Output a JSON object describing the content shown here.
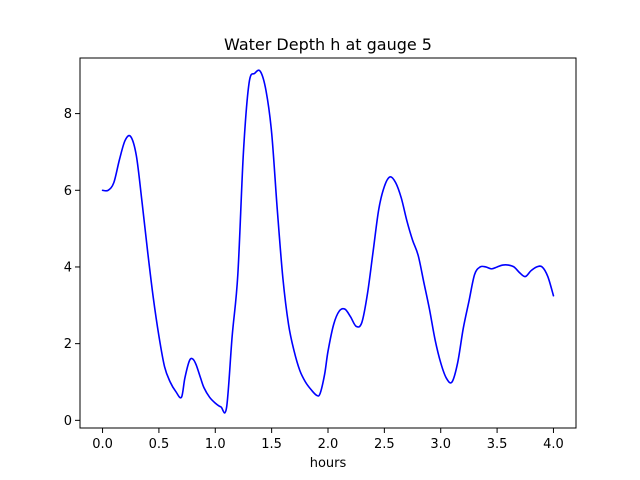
{
  "chart_data": {
    "type": "line",
    "title": "Water Depth h at gauge 5",
    "xlabel": "hours",
    "ylabel": "",
    "xlim": [
      -0.2,
      4.2
    ],
    "ylim": [
      -0.2,
      9.45
    ],
    "xticks": [
      "0.0",
      "0.5",
      "1.0",
      "1.5",
      "2.0",
      "2.5",
      "3.0",
      "3.5",
      "4.0"
    ],
    "yticks": [
      "0",
      "2",
      "4",
      "6",
      "8"
    ],
    "grid": false,
    "series": [
      {
        "color": "#0000ff",
        "x": [
          0.0,
          0.05,
          0.1,
          0.15,
          0.2,
          0.25,
          0.3,
          0.35,
          0.4,
          0.45,
          0.5,
          0.55,
          0.6,
          0.65,
          0.7,
          0.73,
          0.77,
          0.8,
          0.83,
          0.87,
          0.9,
          0.95,
          1.0,
          1.05,
          1.1,
          1.15,
          1.2,
          1.25,
          1.3,
          1.35,
          1.4,
          1.45,
          1.5,
          1.55,
          1.6,
          1.65,
          1.7,
          1.75,
          1.8,
          1.85,
          1.9,
          1.93,
          1.97,
          2.0,
          2.05,
          2.1,
          2.15,
          2.2,
          2.25,
          2.3,
          2.35,
          2.4,
          2.45,
          2.5,
          2.55,
          2.6,
          2.65,
          2.7,
          2.75,
          2.8,
          2.85,
          2.9,
          2.95,
          3.0,
          3.05,
          3.1,
          3.15,
          3.2,
          3.25,
          3.3,
          3.35,
          3.4,
          3.45,
          3.5,
          3.55,
          3.6,
          3.65,
          3.7,
          3.75,
          3.8,
          3.85,
          3.9,
          3.95,
          4.0
        ],
        "y": [
          6.0,
          6.0,
          6.2,
          6.8,
          7.3,
          7.4,
          6.9,
          5.7,
          4.4,
          3.2,
          2.2,
          1.4,
          1.0,
          0.75,
          0.6,
          1.1,
          1.55,
          1.6,
          1.45,
          1.1,
          0.85,
          0.6,
          0.45,
          0.35,
          0.33,
          2.2,
          3.8,
          7.0,
          8.8,
          9.05,
          9.1,
          8.6,
          7.5,
          5.5,
          3.7,
          2.5,
          1.8,
          1.3,
          1.0,
          0.8,
          0.65,
          0.7,
          1.2,
          1.8,
          2.5,
          2.85,
          2.9,
          2.7,
          2.45,
          2.55,
          3.3,
          4.4,
          5.5,
          6.1,
          6.35,
          6.2,
          5.8,
          5.2,
          4.7,
          4.3,
          3.6,
          2.9,
          2.1,
          1.5,
          1.1,
          1.0,
          1.5,
          2.4,
          3.1,
          3.8,
          4.0,
          4.0,
          3.95,
          4.0,
          4.05,
          4.05,
          4.0,
          3.85,
          3.75,
          3.9,
          4.0,
          4.0,
          3.75,
          3.25
        ]
      }
    ]
  }
}
